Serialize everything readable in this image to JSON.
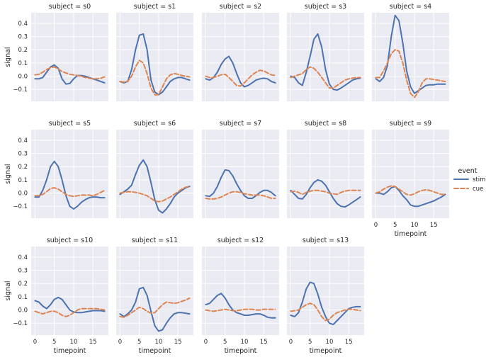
{
  "chart_data": {
    "type": "line",
    "layout": "facet-grid, 5 columns, wrapped",
    "xlabel": "timepoint",
    "ylabel": "signal",
    "xlim": [
      -1,
      19
    ],
    "ylim": [
      -0.19,
      0.48
    ],
    "xticks": [
      0,
      5,
      10,
      15
    ],
    "xtick_labels": [
      "0",
      "5",
      "10",
      "15"
    ],
    "yticks": [
      -0.1,
      0.0,
      0.1,
      0.2,
      0.3,
      0.4
    ],
    "ytick_labels": [
      "−0.1",
      "0.0",
      "0.1",
      "0.2",
      "0.3",
      "0.4"
    ],
    "x": [
      0,
      1,
      2,
      3,
      4,
      5,
      6,
      7,
      8,
      9,
      10,
      11,
      12,
      13,
      14,
      15,
      16,
      17,
      18
    ],
    "legend": {
      "title": "event",
      "entries": [
        {
          "name": "stim",
          "color": "#4c72b0",
          "style": "solid"
        },
        {
          "name": "cue",
          "color": "#dd8452",
          "style": "dashed"
        }
      ]
    },
    "colors": {
      "panel_bg": "#eaeaf2",
      "grid": "#ffffff",
      "stim": "#4c72b0",
      "cue": "#dd8452"
    },
    "panels": [
      {
        "title": "subject = s0",
        "stim": [
          -0.02,
          -0.02,
          -0.01,
          0.03,
          0.07,
          0.085,
          0.06,
          -0.02,
          -0.06,
          -0.055,
          -0.02,
          0.005,
          0.005,
          0.0,
          -0.01,
          -0.02,
          -0.03,
          -0.04,
          -0.05
        ],
        "cue": [
          0.01,
          0.015,
          0.03,
          0.05,
          0.065,
          0.07,
          0.055,
          0.035,
          0.025,
          0.015,
          0.01,
          0.005,
          0.0,
          -0.01,
          -0.015,
          -0.02,
          -0.02,
          -0.015,
          -0.005
        ]
      },
      {
        "title": "subject = s1",
        "stim": [
          -0.04,
          -0.05,
          -0.04,
          0.05,
          0.2,
          0.31,
          0.32,
          0.2,
          -0.03,
          -0.12,
          -0.14,
          -0.12,
          -0.08,
          -0.04,
          -0.02,
          -0.01,
          -0.01,
          -0.02,
          -0.03
        ],
        "cue": [
          -0.04,
          -0.045,
          -0.04,
          0.0,
          0.07,
          0.12,
          0.1,
          0.02,
          -0.09,
          -0.14,
          -0.14,
          -0.08,
          -0.02,
          0.01,
          0.02,
          0.015,
          0.005,
          0.0,
          -0.005
        ]
      },
      {
        "title": "subject = s2",
        "stim": [
          -0.02,
          -0.03,
          -0.01,
          0.03,
          0.09,
          0.13,
          0.15,
          0.1,
          0.02,
          -0.05,
          -0.08,
          -0.07,
          -0.05,
          -0.03,
          -0.02,
          -0.015,
          -0.02,
          -0.04,
          -0.05
        ],
        "cue": [
          0.0,
          -0.01,
          -0.01,
          0.0,
          0.01,
          0.015,
          -0.01,
          -0.04,
          -0.07,
          -0.075,
          -0.05,
          -0.02,
          0.01,
          0.03,
          0.045,
          0.04,
          0.025,
          0.01,
          0.005
        ]
      },
      {
        "title": "subject = s3",
        "stim": [
          0.0,
          -0.01,
          -0.05,
          -0.07,
          0.03,
          0.15,
          0.28,
          0.32,
          0.22,
          0.05,
          -0.06,
          -0.1,
          -0.105,
          -0.09,
          -0.07,
          -0.05,
          -0.03,
          -0.02,
          -0.015
        ],
        "cue": [
          -0.01,
          0.0,
          0.01,
          0.02,
          0.05,
          0.07,
          0.06,
          0.03,
          -0.01,
          -0.05,
          -0.09,
          -0.09,
          -0.07,
          -0.05,
          -0.03,
          -0.02,
          -0.015,
          -0.01,
          -0.01
        ]
      },
      {
        "title": "subject = s4",
        "stim": [
          -0.02,
          -0.04,
          -0.01,
          0.08,
          0.3,
          0.46,
          0.42,
          0.25,
          0.04,
          -0.08,
          -0.13,
          -0.11,
          -0.09,
          -0.07,
          -0.065,
          -0.065,
          -0.06,
          -0.06,
          -0.06
        ],
        "cue": [
          -0.01,
          -0.01,
          0.04,
          0.1,
          0.17,
          0.2,
          0.19,
          0.1,
          -0.03,
          -0.13,
          -0.16,
          -0.12,
          -0.05,
          -0.02,
          -0.02,
          -0.025,
          -0.03,
          -0.035,
          -0.04
        ]
      },
      {
        "title": "subject = s5",
        "stim": [
          -0.03,
          -0.03,
          0.02,
          0.1,
          0.2,
          0.24,
          0.2,
          0.1,
          -0.02,
          -0.1,
          -0.12,
          -0.1,
          -0.07,
          -0.05,
          -0.035,
          -0.03,
          -0.03,
          -0.035,
          -0.035
        ],
        "cue": [
          -0.02,
          -0.02,
          -0.01,
          0.01,
          0.035,
          0.04,
          0.03,
          0.01,
          -0.01,
          -0.02,
          -0.025,
          -0.02,
          -0.015,
          -0.015,
          -0.015,
          -0.02,
          -0.01,
          0.005,
          0.02
        ]
      },
      {
        "title": "subject = s6",
        "stim": [
          -0.01,
          0.01,
          0.03,
          0.06,
          0.14,
          0.21,
          0.25,
          0.2,
          0.08,
          -0.05,
          -0.13,
          -0.15,
          -0.12,
          -0.08,
          -0.03,
          0.0,
          0.02,
          0.04,
          0.05
        ],
        "cue": [
          0.0,
          0.005,
          0.01,
          0.01,
          0.005,
          0.0,
          -0.01,
          -0.02,
          -0.04,
          -0.06,
          -0.065,
          -0.06,
          -0.045,
          -0.03,
          -0.01,
          0.01,
          0.03,
          0.045,
          0.05
        ]
      },
      {
        "title": "subject = s7",
        "stim": [
          -0.02,
          -0.025,
          0.0,
          0.05,
          0.12,
          0.175,
          0.17,
          0.13,
          0.07,
          0.02,
          -0.02,
          -0.04,
          -0.04,
          -0.02,
          0.005,
          0.02,
          0.02,
          0.005,
          -0.02
        ],
        "cue": [
          -0.04,
          -0.045,
          -0.045,
          -0.04,
          -0.03,
          -0.015,
          0.0,
          0.01,
          0.01,
          0.005,
          -0.005,
          -0.01,
          -0.015,
          -0.015,
          -0.015,
          -0.02,
          -0.03,
          -0.04,
          -0.04
        ]
      },
      {
        "title": "subject = s8",
        "stim": [
          0.02,
          -0.01,
          -0.04,
          -0.045,
          -0.01,
          0.04,
          0.08,
          0.1,
          0.09,
          0.06,
          0.01,
          -0.04,
          -0.08,
          -0.1,
          -0.105,
          -0.09,
          -0.07,
          -0.05,
          -0.03
        ],
        "cue": [
          0.01,
          0.015,
          0.005,
          -0.01,
          0.005,
          0.015,
          0.02,
          0.02,
          0.015,
          0.01,
          0.0,
          -0.005,
          -0.01,
          0.005,
          0.015,
          0.02,
          0.02,
          0.02,
          0.02
        ]
      },
      {
        "title": "subject = s9",
        "stim": [
          0.0,
          0.0,
          -0.01,
          0.01,
          0.04,
          0.05,
          0.02,
          -0.02,
          -0.05,
          -0.09,
          -0.1,
          -0.1,
          -0.09,
          -0.08,
          -0.07,
          -0.06,
          -0.045,
          -0.03,
          -0.01
        ],
        "cue": [
          0.0,
          0.01,
          0.03,
          0.045,
          0.055,
          0.05,
          0.03,
          0.01,
          -0.01,
          -0.015,
          -0.005,
          0.01,
          0.02,
          0.025,
          0.02,
          0.01,
          0.0,
          -0.01,
          -0.01
        ]
      },
      {
        "title": "subject = s10",
        "stim": [
          0.07,
          0.06,
          0.03,
          0.01,
          0.04,
          0.08,
          0.095,
          0.08,
          0.04,
          0.0,
          -0.015,
          -0.02,
          -0.02,
          -0.015,
          -0.01,
          -0.005,
          -0.005,
          -0.005,
          -0.01
        ],
        "cue": [
          -0.01,
          -0.02,
          -0.03,
          -0.02,
          -0.01,
          -0.01,
          -0.02,
          -0.04,
          -0.05,
          -0.04,
          -0.02,
          0.0,
          0.01,
          0.01,
          0.01,
          0.01,
          0.01,
          0.005,
          0.0
        ]
      },
      {
        "title": "subject = s11",
        "stim": [
          -0.03,
          -0.05,
          -0.03,
          0.0,
          0.06,
          0.16,
          0.17,
          0.11,
          -0.01,
          -0.12,
          -0.16,
          -0.15,
          -0.1,
          -0.06,
          -0.03,
          -0.02,
          -0.02,
          -0.025,
          -0.03
        ],
        "cue": [
          -0.05,
          -0.055,
          -0.04,
          -0.02,
          0.0,
          0.02,
          0.01,
          -0.01,
          -0.025,
          -0.02,
          0.01,
          0.04,
          0.06,
          0.055,
          0.05,
          0.055,
          0.065,
          0.075,
          0.09
        ]
      },
      {
        "title": "subject = s12",
        "stim": [
          0.04,
          0.05,
          0.08,
          0.11,
          0.125,
          0.09,
          0.04,
          0.0,
          -0.02,
          -0.03,
          -0.04,
          -0.04,
          -0.035,
          -0.03,
          -0.03,
          -0.04,
          -0.055,
          -0.06,
          -0.06
        ],
        "cue": [
          0.0,
          -0.005,
          -0.01,
          -0.005,
          0.0,
          0.005,
          0.0,
          -0.005,
          -0.005,
          0.0,
          0.005,
          0.005,
          0.005,
          0.0,
          0.0,
          0.005,
          0.005,
          0.005,
          0.005
        ]
      },
      {
        "title": "subject = s13",
        "stim": [
          -0.04,
          -0.05,
          -0.02,
          0.06,
          0.16,
          0.21,
          0.2,
          0.12,
          0.02,
          -0.05,
          -0.1,
          -0.11,
          -0.08,
          -0.05,
          -0.02,
          0.01,
          0.02,
          0.025,
          0.025
        ],
        "cue": [
          -0.01,
          -0.005,
          0.0,
          0.02,
          0.04,
          0.05,
          0.04,
          0.0,
          -0.05,
          -0.08,
          -0.07,
          -0.04,
          -0.02,
          -0.01,
          0.0,
          0.005,
          0.005,
          0.0,
          -0.005
        ]
      }
    ]
  }
}
